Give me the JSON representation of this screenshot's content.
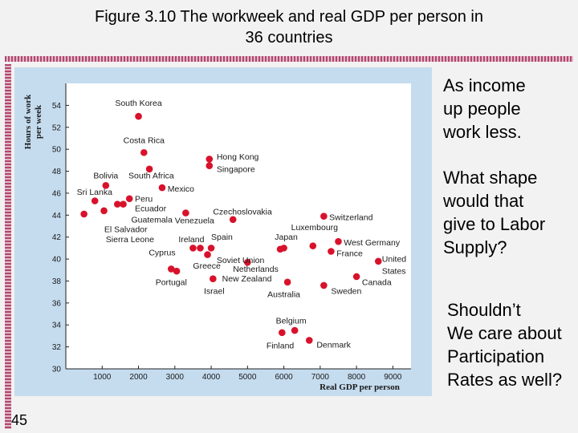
{
  "slide": {
    "title_line1": "Figure 3.10  The workweek and real GDP per person in",
    "title_line2": "36 countries",
    "page_number": "45"
  },
  "notes": {
    "note1": [
      "As income",
      "up people",
      "work less."
    ],
    "note2": [
      "What shape",
      "would that",
      "give to Labor",
      "Supply?"
    ],
    "note3": [
      "Shouldn’t",
      "We care about",
      "Participation",
      "Rates as well?"
    ]
  },
  "colors": {
    "point": "#d8122b",
    "plot_bg": "#ffffff",
    "panel_bg": "#c5dcef",
    "accent": "#b0486e"
  },
  "chart_data": {
    "type": "scatter",
    "title": "Figure 3.10 The workweek and real GDP per person in 36 countries",
    "xlabel": "Real GDP per person",
    "ylabel_lines": [
      "Hours of work",
      "per week"
    ],
    "xlim": [
      0,
      9500
    ],
    "ylim": [
      30,
      56
    ],
    "xticks": [
      1000,
      2000,
      3000,
      4000,
      5000,
      6000,
      7000,
      8000,
      9000
    ],
    "xtick_labels": [
      "1000",
      "2000",
      "3000",
      "4000",
      "5000",
      "6000",
      "7000",
      "8000",
      "9000"
    ],
    "yticks": [
      30,
      32,
      34,
      36,
      38,
      40,
      42,
      44,
      46,
      48,
      50,
      52,
      54
    ],
    "ytick_labels": [
      "30",
      "32",
      "34",
      "36",
      "38",
      "40",
      "42",
      "44",
      "46",
      "48",
      "50",
      "52",
      "54"
    ],
    "points": [
      {
        "name": "South Korea",
        "x": 2000,
        "y": 53.0
      },
      {
        "name": "Costa Rica",
        "x": 2150,
        "y": 49.7
      },
      {
        "name": "Hong Kong",
        "x": 3950,
        "y": 49.1
      },
      {
        "name": "Singapore",
        "x": 3950,
        "y": 48.5
      },
      {
        "name": "Bolivia",
        "x": 1100,
        "y": 46.7
      },
      {
        "name": "South Africa",
        "x": 2300,
        "y": 48.2
      },
      {
        "name": "Mexico",
        "x": 2650,
        "y": 46.5
      },
      {
        "name": "Sri Lanka",
        "x": 800,
        "y": 45.3
      },
      {
        "name": "Peru",
        "x": 1750,
        "y": 45.5
      },
      {
        "name": "Ecuador",
        "x": 1580,
        "y": 45.0
      },
      {
        "name": "Guatemala",
        "x": 1420,
        "y": 45.0
      },
      {
        "name": "El Salvador",
        "x": 1050,
        "y": 44.4
      },
      {
        "name": "Sierra Leone",
        "x": 500,
        "y": 44.1
      },
      {
        "name": "Czechoslovakia",
        "x": 4600,
        "y": 43.6
      },
      {
        "name": "Venezuela",
        "x": 3300,
        "y": 44.2
      },
      {
        "name": "Switzerland",
        "x": 7100,
        "y": 43.9
      },
      {
        "name": "Luxembourg",
        "x": 6800,
        "y": 41.2
      },
      {
        "name": "Ireland",
        "x": 3700,
        "y": 41.0
      },
      {
        "name": "Spain",
        "x": 4000,
        "y": 41.0
      },
      {
        "name": "Japan",
        "x": 6000,
        "y": 41.0
      },
      {
        "name": "West Germany",
        "x": 7500,
        "y": 41.6
      },
      {
        "name": "France",
        "x": 7300,
        "y": 40.7
      },
      {
        "name": "Cyprus",
        "x": 3500,
        "y": 41.0
      },
      {
        "name": "Soviet Union",
        "x": 3900,
        "y": 40.4
      },
      {
        "name": "Netherlands",
        "x": 5900,
        "y": 40.9
      },
      {
        "name": "United States",
        "x": 8600,
        "y": 39.8
      },
      {
        "name": "Greece",
        "x": 3050,
        "y": 38.9
      },
      {
        "name": "New Zealand",
        "x": 5000,
        "y": 39.7
      },
      {
        "name": "Canada",
        "x": 8000,
        "y": 38.4
      },
      {
        "name": "Portugal",
        "x": 2900,
        "y": 39.1
      },
      {
        "name": "Israel",
        "x": 4050,
        "y": 38.2
      },
      {
        "name": "Australia",
        "x": 6100,
        "y": 37.9
      },
      {
        "name": "Sweden",
        "x": 7100,
        "y": 37.6
      },
      {
        "name": "Belgium",
        "x": 6300,
        "y": 33.5
      },
      {
        "name": "Finland",
        "x": 5950,
        "y": 33.3
      },
      {
        "name": "Denmark",
        "x": 6700,
        "y": 32.6
      }
    ],
    "labels": [
      {
        "text": "South Korea",
        "x": 2000,
        "y": 54.2,
        "anchor": "middle"
      },
      {
        "text": "Costa Rica",
        "x": 2150,
        "y": 50.8,
        "anchor": "middle"
      },
      {
        "text": "Hong Kong",
        "x": 4150,
        "y": 49.3,
        "anchor": "start"
      },
      {
        "text": "Singapore",
        "x": 4150,
        "y": 48.2,
        "anchor": "start"
      },
      {
        "text": "Bolivia",
        "x": 1100,
        "y": 47.6,
        "anchor": "middle"
      },
      {
        "text": "South Africa",
        "x": 2350,
        "y": 47.6,
        "anchor": "middle"
      },
      {
        "text": "Mexico",
        "x": 2800,
        "y": 46.4,
        "anchor": "start"
      },
      {
        "text": "Sri Lanka",
        "x": 300,
        "y": 46.1,
        "anchor": "start"
      },
      {
        "text": "Peru",
        "x": 1900,
        "y": 45.5,
        "anchor": "start"
      },
      {
        "text": "Ecuador",
        "x": 1900,
        "y": 44.6,
        "anchor": "start"
      },
      {
        "text": "Guatemala",
        "x": 1800,
        "y": 43.6,
        "anchor": "start"
      },
      {
        "text": "El Salvador",
        "x": 1650,
        "y": 42.7,
        "anchor": "middle"
      },
      {
        "text": "Sierra Leone",
        "x": 1100,
        "y": 41.8,
        "anchor": "start"
      },
      {
        "text": "Czechoslovakia",
        "x": 4050,
        "y": 44.3,
        "anchor": "start"
      },
      {
        "text": "Venezuela",
        "x": 3000,
        "y": 43.5,
        "anchor": "start"
      },
      {
        "text": "Switzerland",
        "x": 7250,
        "y": 43.8,
        "anchor": "start"
      },
      {
        "text": "Luxembourg",
        "x": 6200,
        "y": 42.9,
        "anchor": "start"
      },
      {
        "text": "Ireland",
        "x": 3100,
        "y": 41.8,
        "anchor": "start"
      },
      {
        "text": "Spain",
        "x": 4000,
        "y": 42.0,
        "anchor": "start"
      },
      {
        "text": "Japan",
        "x": 5750,
        "y": 42.0,
        "anchor": "start"
      },
      {
        "text": "West Germany",
        "x": 7650,
        "y": 41.5,
        "anchor": "start"
      },
      {
        "text": "France",
        "x": 7450,
        "y": 40.5,
        "anchor": "start"
      },
      {
        "text": "Cyprus",
        "x": 2650,
        "y": 40.6,
        "anchor": "middle"
      },
      {
        "text": "Soviet Union",
        "x": 4150,
        "y": 39.9,
        "anchor": "start"
      },
      {
        "text": "Netherlands",
        "x": 4600,
        "y": 39.1,
        "anchor": "start"
      },
      {
        "text": "United",
        "x": 8700,
        "y": 40.0,
        "anchor": "start"
      },
      {
        "text": "States",
        "x": 8700,
        "y": 38.9,
        "anchor": "start"
      },
      {
        "text": "Greece",
        "x": 3500,
        "y": 39.4,
        "anchor": "start"
      },
      {
        "text": "New Zealand",
        "x": 4300,
        "y": 38.2,
        "anchor": "start"
      },
      {
        "text": "Canada",
        "x": 8150,
        "y": 37.9,
        "anchor": "start"
      },
      {
        "text": "Portugal",
        "x": 2900,
        "y": 37.9,
        "anchor": "middle"
      },
      {
        "text": "Israel",
        "x": 3800,
        "y": 37.1,
        "anchor": "start"
      },
      {
        "text": "Australia",
        "x": 6000,
        "y": 36.8,
        "anchor": "middle"
      },
      {
        "text": "Sweden",
        "x": 7300,
        "y": 37.1,
        "anchor": "start"
      },
      {
        "text": "Belgium",
        "x": 6200,
        "y": 34.4,
        "anchor": "middle"
      },
      {
        "text": "Finland",
        "x": 5900,
        "y": 32.1,
        "anchor": "middle"
      },
      {
        "text": "Denmark",
        "x": 6900,
        "y": 32.2,
        "anchor": "start"
      }
    ]
  }
}
